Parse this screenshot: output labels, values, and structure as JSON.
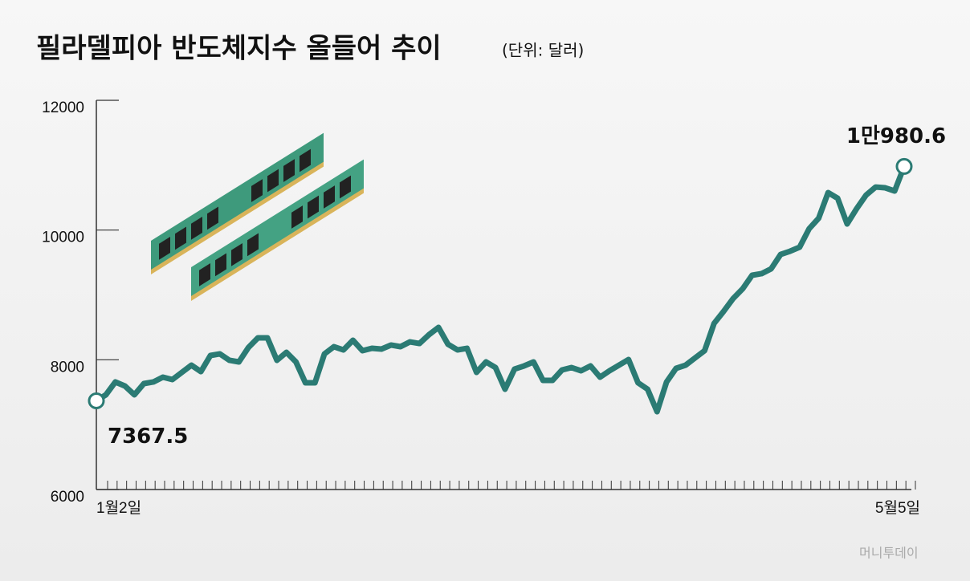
{
  "chart_data": {
    "type": "line",
    "title": "필라델피아 반도체지수 올들어 추이",
    "subtitle": "(단위: 달러)",
    "source": "머니투데이",
    "categories": [
      "1월2일",
      null,
      null,
      null,
      null,
      null,
      null,
      null,
      null,
      null,
      null,
      null,
      null,
      null,
      null,
      null,
      null,
      null,
      null,
      null,
      null,
      null,
      null,
      null,
      null,
      null,
      null,
      null,
      null,
      null,
      null,
      null,
      null,
      null,
      null,
      null,
      null,
      null,
      null,
      null,
      null,
      null,
      null,
      null,
      null,
      null,
      null,
      null,
      null,
      null,
      null,
      null,
      null,
      null,
      null,
      null,
      null,
      null,
      null,
      null,
      null,
      null,
      null,
      null,
      null,
      null,
      null,
      null,
      null,
      null,
      null,
      null,
      null,
      null,
      null,
      null,
      null,
      null,
      null,
      null,
      null,
      null,
      null,
      null,
      null,
      "5월5일"
    ],
    "values": [
      7367.5,
      7460,
      7658,
      7596,
      7460,
      7633,
      7658,
      7732,
      7695,
      7806,
      7917,
      7818,
      8066,
      8091,
      7992,
      7967,
      8189,
      8338,
      8338,
      7992,
      8115,
      7967,
      7645,
      7645,
      8091,
      8202,
      8152,
      8301,
      8140,
      8177,
      8165,
      8227,
      8202,
      8276,
      8251,
      8387,
      8499,
      8239,
      8152,
      8177,
      7806,
      7967,
      7880,
      7546,
      7856,
      7905,
      7967,
      7682,
      7682,
      7843,
      7880,
      7831,
      7905,
      7732,
      7831,
      7917,
      8004,
      7645,
      7546,
      7200,
      7658,
      7868,
      7917,
      8029,
      8140,
      8561,
      8746,
      8944,
      9093,
      9303,
      9328,
      9402,
      9624,
      9674,
      9736,
      10020,
      10181,
      10577,
      10490,
      10094,
      10330,
      10540,
      10663,
      10651,
      10602,
      10980.6
    ],
    "value_labels": [
      null,
      null,
      null,
      null,
      null,
      null,
      null,
      null,
      null,
      null,
      null,
      null,
      null,
      null,
      null,
      null,
      null,
      null,
      null,
      null,
      null,
      null,
      null,
      null,
      null,
      null,
      null,
      null,
      null,
      null,
      null,
      null,
      null,
      null,
      null,
      null,
      null,
      null,
      null,
      null,
      null,
      null,
      null,
      null,
      null,
      null,
      null,
      null,
      null,
      null,
      null,
      null,
      null,
      null,
      null,
      null,
      null,
      null,
      null,
      null,
      null,
      null,
      null,
      null,
      null,
      null,
      null,
      null,
      null,
      null,
      null,
      null,
      null,
      null,
      null,
      null,
      null,
      null,
      null,
      null,
      null,
      null,
      null,
      null,
      null,
      "1만980.6"
    ],
    "color": "#2b7b74",
    "ylim": [
      6000,
      12000
    ],
    "yticks": [
      6000,
      8000,
      10000,
      12000
    ]
  }
}
